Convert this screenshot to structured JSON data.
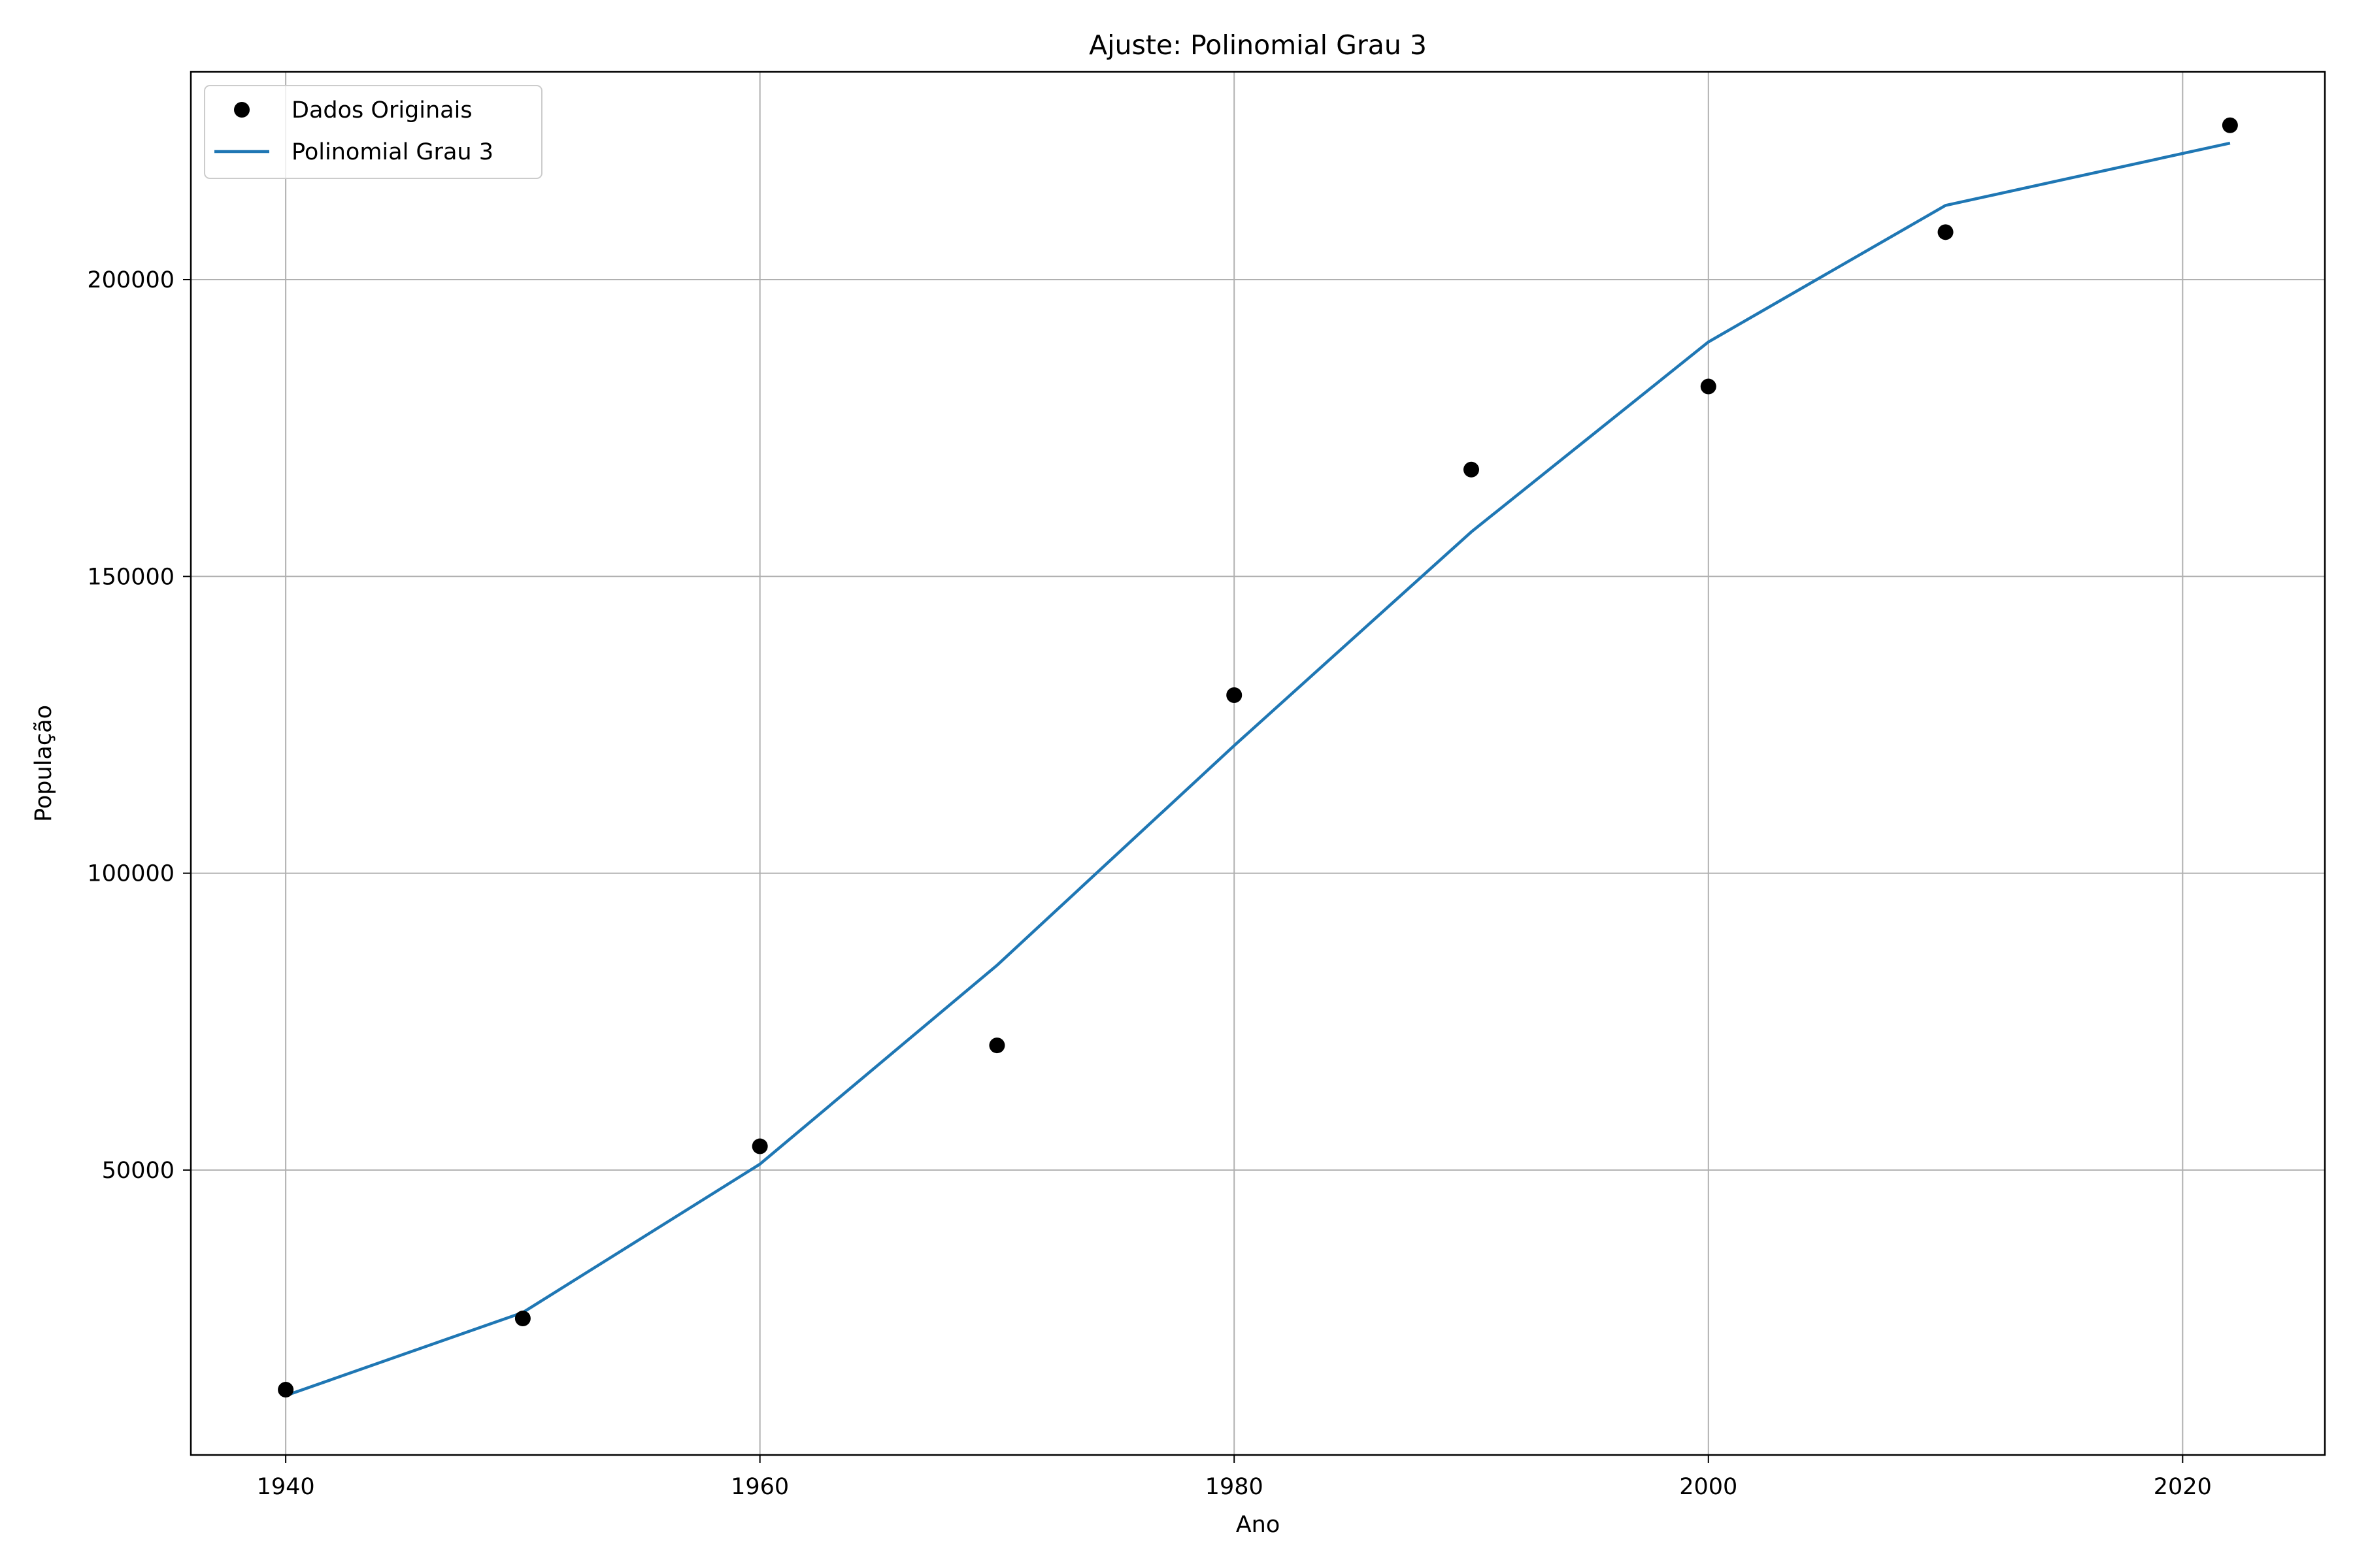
{
  "chart_data": {
    "type": "line",
    "title": "Ajuste: Polinomial Grau 3",
    "xlabel": "Ano",
    "ylabel": "População",
    "xlim": [
      1936,
      2026
    ],
    "ylim": [
      2000,
      235000
    ],
    "xticks": [
      1940,
      1960,
      1980,
      2000,
      2020
    ],
    "yticks": [
      50000,
      100000,
      150000,
      200000
    ],
    "grid": true,
    "legend_position": "top-left",
    "series": [
      {
        "name": "Dados Originais",
        "style": "markers",
        "color": "#000000",
        "x": [
          1940,
          1950,
          1960,
          1970,
          1980,
          1990,
          2000,
          2010,
          2022
        ],
        "y": [
          13000,
          25000,
          54000,
          71000,
          130000,
          168000,
          182000,
          208000,
          226000
        ]
      },
      {
        "name": "Polinomial Grau 3",
        "style": "line",
        "color": "#1f77b4",
        "x": [
          1940,
          1950,
          1960,
          1970,
          1980,
          1990,
          2000,
          2010,
          2022
        ],
        "y": [
          12000,
          26000,
          51000,
          84500,
          121500,
          157500,
          189500,
          212500,
          223000
        ]
      }
    ]
  }
}
